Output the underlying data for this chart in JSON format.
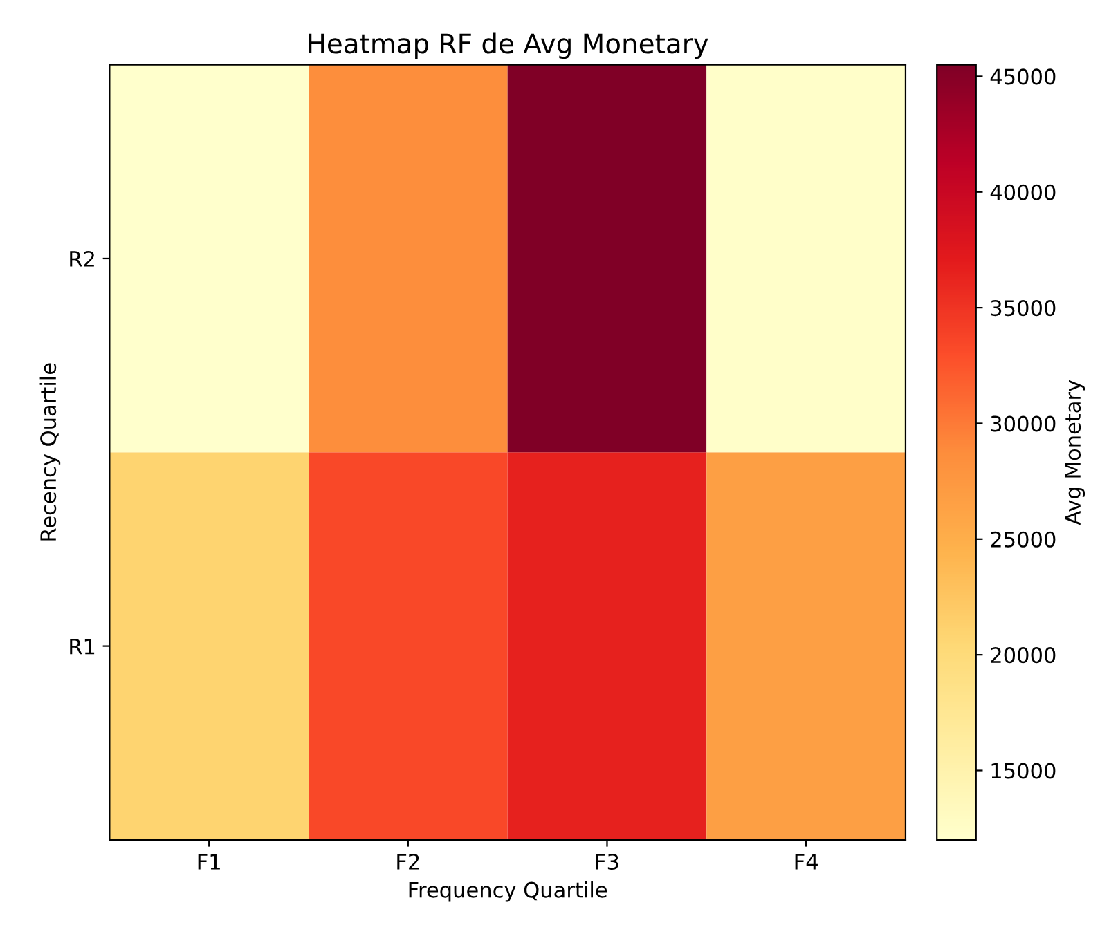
{
  "chart_data": {
    "type": "heatmap",
    "title": "Heatmap RF de Avg Monetary",
    "xlabel": "Frequency Quartile",
    "ylabel": "Recency Quartile",
    "clabel": "Avg Monetary",
    "categories": [
      "F1",
      "F2",
      "F3",
      "F4"
    ],
    "y_categories": [
      "R2",
      "R1"
    ],
    "cells": [
      [
        12000,
        28700,
        45500,
        12300
      ],
      [
        21000,
        33400,
        36500,
        26700
      ]
    ],
    "clim": [
      12000,
      45500
    ],
    "cticks": [
      15000,
      20000,
      25000,
      30000,
      35000,
      40000,
      45000
    ]
  }
}
